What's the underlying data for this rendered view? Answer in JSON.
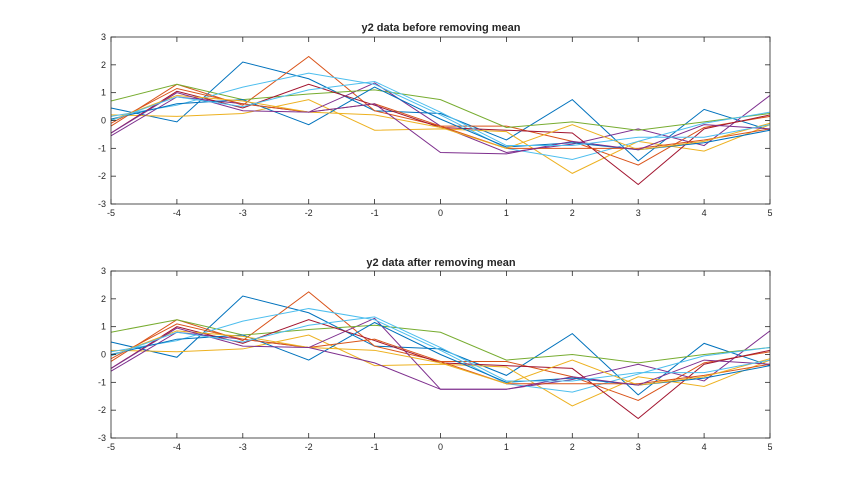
{
  "chart_data": [
    {
      "type": "line",
      "title": "y2 data before removing mean",
      "xlabel": "",
      "ylabel": "",
      "xlim": [
        -5,
        5
      ],
      "ylim": [
        -3,
        3
      ],
      "xticks": [
        -5,
        -4,
        -3,
        -2,
        -1,
        0,
        1,
        2,
        3,
        4,
        5
      ],
      "yticks": [
        -3,
        -2,
        -1,
        0,
        1,
        2,
        3
      ],
      "grid": false,
      "x": [
        -5,
        -4,
        -3,
        -2,
        -1,
        0,
        1,
        2,
        3,
        4,
        5
      ],
      "series": [
        {
          "color": "#0072BD",
          "values": [
            0.45,
            -0.05,
            2.1,
            1.5,
            0.35,
            0.25,
            -0.7,
            0.75,
            -1.45,
            0.4,
            -0.35
          ]
        },
        {
          "color": "#D95319",
          "values": [
            -0.2,
            1.3,
            0.55,
            2.3,
            0.35,
            -0.2,
            -0.2,
            -0.75,
            -1.6,
            -0.25,
            0.15
          ]
        },
        {
          "color": "#EDB120",
          "values": [
            0.2,
            0.15,
            0.25,
            0.75,
            -0.35,
            -0.3,
            -0.4,
            -1.9,
            -0.75,
            -1.1,
            -0.15
          ]
        },
        {
          "color": "#7E2F8E",
          "values": [
            -0.55,
            0.85,
            0.6,
            0.3,
            1.35,
            -0.2,
            -1.15,
            -0.85,
            -0.3,
            -0.9,
            0.9
          ]
        },
        {
          "color": "#77AC30",
          "values": [
            0.7,
            1.3,
            0.75,
            0.95,
            1.1,
            0.75,
            -0.25,
            -0.05,
            -0.35,
            -0.05,
            0.25
          ]
        },
        {
          "color": "#4DBEEE",
          "values": [
            0.15,
            0.55,
            1.2,
            1.7,
            1.3,
            0.2,
            -1.0,
            -1.4,
            -0.75,
            -0.1,
            0.3
          ]
        },
        {
          "color": "#A2142F",
          "values": [
            -0.45,
            1.05,
            0.45,
            1.3,
            0.55,
            -0.25,
            -0.35,
            -0.45,
            -2.3,
            -0.3,
            0.2
          ]
        },
        {
          "color": "#0072BD",
          "values": [
            0.05,
            0.6,
            0.75,
            -0.15,
            1.2,
            0.05,
            -0.95,
            -0.8,
            -1.05,
            -0.8,
            -0.35
          ]
        },
        {
          "color": "#D95319",
          "values": [
            -0.1,
            1.15,
            0.6,
            0.3,
            0.6,
            -0.2,
            -1.0,
            -1.0,
            -1.0,
            -0.7,
            -0.3
          ]
        },
        {
          "color": "#EDB120",
          "values": [
            0.0,
            0.9,
            0.7,
            0.3,
            0.2,
            -0.25,
            -1.0,
            -0.15,
            -1.05,
            -0.75,
            -0.1
          ]
        },
        {
          "color": "#7E2F8E",
          "values": [
            -0.45,
            1.0,
            0.35,
            0.3,
            0.6,
            -1.15,
            -1.2,
            -0.75,
            -1.05,
            -0.15,
            -0.3
          ]
        },
        {
          "color": "#4DBEEE",
          "values": [
            0.0,
            0.85,
            0.5,
            1.1,
            1.4,
            0.3,
            -0.9,
            -0.9,
            -0.6,
            -0.6,
            -0.15
          ]
        }
      ]
    },
    {
      "type": "line",
      "title": "y2 data after removing mean",
      "xlabel": "",
      "ylabel": "",
      "xlim": [
        -5,
        5
      ],
      "ylim": [
        -3,
        3
      ],
      "xticks": [
        -5,
        -4,
        -3,
        -2,
        -1,
        0,
        1,
        2,
        3,
        4,
        5
      ],
      "yticks": [
        -3,
        -2,
        -1,
        0,
        1,
        2,
        3
      ],
      "grid": false,
      "x": [
        -5,
        -4,
        -3,
        -2,
        -1,
        0,
        1,
        2,
        3,
        4,
        5
      ],
      "series": [
        {
          "color": "#0072BD",
          "values": [
            0.45,
            -0.1,
            2.1,
            1.5,
            0.3,
            0.2,
            -0.75,
            0.75,
            -1.45,
            0.4,
            -0.4
          ]
        },
        {
          "color": "#D95319",
          "values": [
            -0.25,
            1.25,
            0.5,
            2.25,
            0.3,
            -0.25,
            -0.25,
            -0.8,
            -1.65,
            -0.3,
            0.1
          ]
        },
        {
          "color": "#EDB120",
          "values": [
            0.15,
            0.1,
            0.2,
            0.7,
            -0.4,
            -0.35,
            -0.45,
            -1.85,
            -0.8,
            -1.15,
            -0.2
          ]
        },
        {
          "color": "#7E2F8E",
          "values": [
            -0.6,
            0.8,
            0.55,
            0.25,
            1.3,
            -1.25,
            -1.25,
            -0.9,
            -0.35,
            -0.95,
            0.85
          ]
        },
        {
          "color": "#77AC30",
          "values": [
            0.8,
            1.25,
            0.7,
            0.9,
            1.05,
            0.8,
            -0.2,
            0.0,
            -0.3,
            0.0,
            0.25
          ]
        },
        {
          "color": "#4DBEEE",
          "values": [
            0.1,
            0.5,
            1.2,
            1.65,
            1.25,
            0.15,
            -1.05,
            -1.35,
            -0.7,
            -0.05,
            0.25
          ]
        },
        {
          "color": "#A2142F",
          "values": [
            -0.5,
            1.0,
            0.4,
            1.25,
            0.5,
            -0.3,
            -0.4,
            -0.5,
            -2.3,
            -0.35,
            0.15
          ]
        },
        {
          "color": "#0072BD",
          "values": [
            0.0,
            0.55,
            0.7,
            -0.2,
            1.15,
            0.0,
            -1.0,
            -0.85,
            -1.1,
            -0.85,
            -0.4
          ]
        },
        {
          "color": "#D95319",
          "values": [
            -0.15,
            1.1,
            0.55,
            0.25,
            0.55,
            -0.25,
            -1.05,
            -1.05,
            -1.05,
            -0.75,
            -0.35
          ]
        },
        {
          "color": "#EDB120",
          "values": [
            -0.05,
            0.85,
            0.65,
            0.25,
            0.15,
            -0.3,
            -1.05,
            -0.2,
            -1.1,
            -0.8,
            -0.15
          ]
        },
        {
          "color": "#7E2F8E",
          "values": [
            -0.5,
            0.95,
            0.3,
            0.25,
            -0.3,
            -1.25,
            -1.25,
            -0.8,
            -1.1,
            -0.2,
            -0.35
          ]
        },
        {
          "color": "#4DBEEE",
          "values": [
            -0.05,
            0.8,
            0.45,
            1.05,
            1.35,
            0.25,
            -0.95,
            -0.95,
            -0.65,
            -0.65,
            -0.2
          ]
        }
      ]
    }
  ]
}
